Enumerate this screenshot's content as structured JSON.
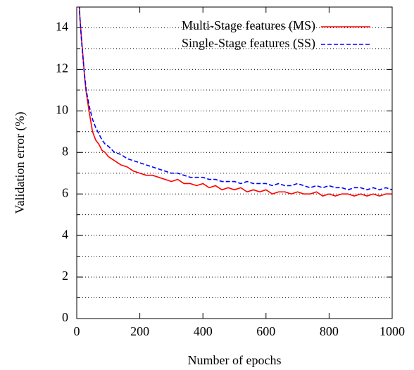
{
  "chart_data": {
    "type": "line",
    "xlabel": "Number of epochs",
    "ylabel": "Validation error (%)",
    "xlim": [
      0,
      1000
    ],
    "ylim": [
      0,
      15
    ],
    "xticks": [
      0,
      200,
      400,
      600,
      800,
      1000
    ],
    "yticks": [
      0,
      2,
      4,
      6,
      8,
      10,
      12,
      14
    ],
    "yminorticks": [
      1,
      3,
      5,
      7,
      9,
      11,
      13
    ],
    "grid": true,
    "legend": "top-right",
    "x": [
      0,
      5,
      10,
      15,
      20,
      25,
      30,
      40,
      50,
      60,
      70,
      80,
      90,
      100,
      120,
      140,
      160,
      180,
      200,
      220,
      240,
      260,
      280,
      300,
      320,
      340,
      360,
      380,
      400,
      420,
      440,
      460,
      480,
      500,
      520,
      540,
      560,
      580,
      600,
      620,
      640,
      660,
      680,
      700,
      720,
      740,
      760,
      780,
      800,
      820,
      840,
      860,
      880,
      900,
      920,
      940,
      960,
      980,
      1000
    ],
    "series": [
      {
        "name": "Multi-Stage features (MS)",
        "color": "#ff0000",
        "dash": false,
        "values": [
          20,
          16,
          14.5,
          13.5,
          12.6,
          11.6,
          10.9,
          9.9,
          9.0,
          8.6,
          8.4,
          8.1,
          8.0,
          7.8,
          7.6,
          7.4,
          7.3,
          7.1,
          7.0,
          6.9,
          6.9,
          6.8,
          6.7,
          6.6,
          6.7,
          6.5,
          6.5,
          6.4,
          6.5,
          6.3,
          6.4,
          6.2,
          6.3,
          6.2,
          6.3,
          6.1,
          6.2,
          6.1,
          6.2,
          6.0,
          6.1,
          6.1,
          6.0,
          6.1,
          6.0,
          6.0,
          6.1,
          5.9,
          6.0,
          5.9,
          6.0,
          6.0,
          5.9,
          6.0,
          5.9,
          6.0,
          5.9,
          6.0,
          6.0
        ]
      },
      {
        "name": "Single-Stage features (SS)",
        "color": "#0000ff",
        "dash": true,
        "values": [
          20,
          16,
          14.5,
          13.4,
          12.5,
          11.7,
          11.0,
          10.2,
          9.6,
          9.2,
          8.9,
          8.6,
          8.4,
          8.3,
          8.0,
          7.9,
          7.7,
          7.6,
          7.5,
          7.4,
          7.3,
          7.2,
          7.1,
          7.0,
          7.0,
          6.9,
          6.8,
          6.8,
          6.8,
          6.7,
          6.7,
          6.6,
          6.6,
          6.6,
          6.5,
          6.6,
          6.5,
          6.5,
          6.5,
          6.4,
          6.5,
          6.4,
          6.4,
          6.5,
          6.4,
          6.3,
          6.4,
          6.3,
          6.4,
          6.3,
          6.3,
          6.2,
          6.3,
          6.3,
          6.2,
          6.3,
          6.2,
          6.3,
          6.2
        ]
      }
    ]
  }
}
